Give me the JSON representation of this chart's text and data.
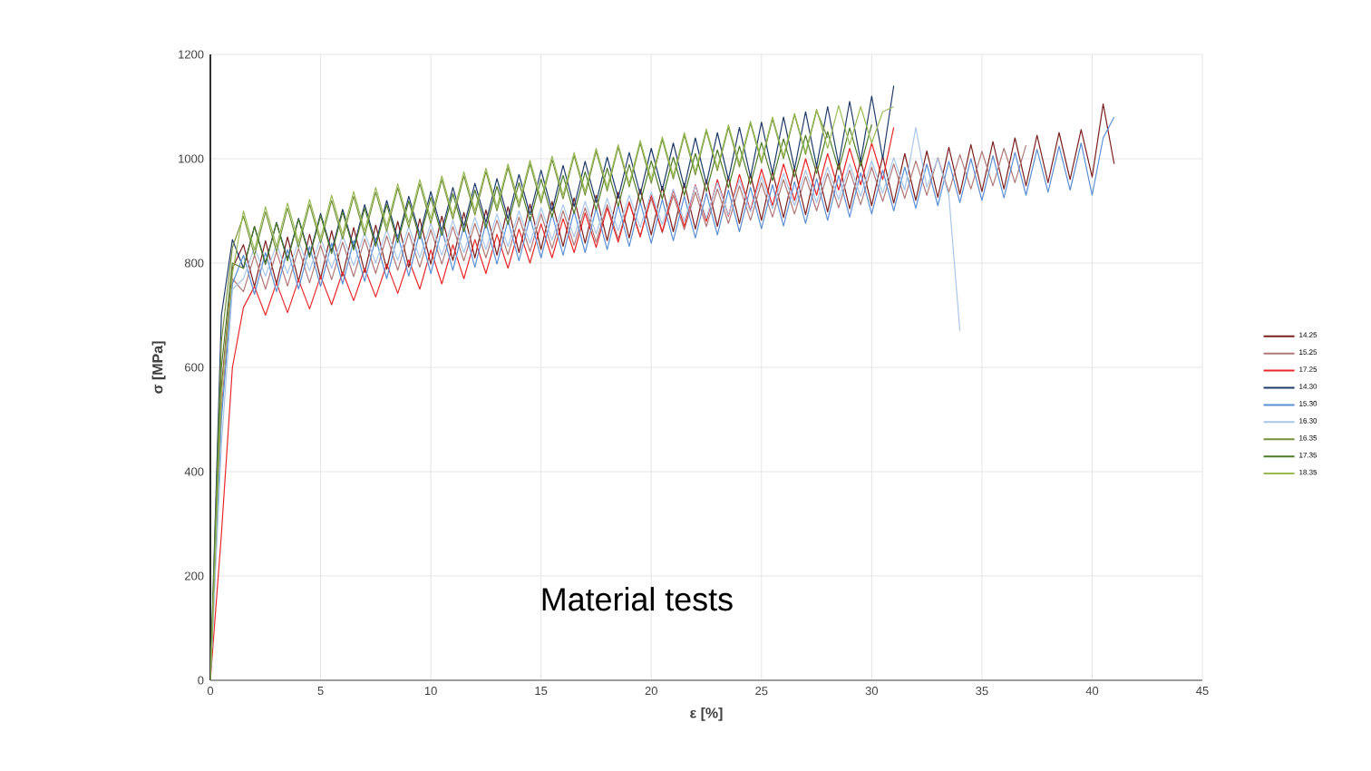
{
  "chart_data": {
    "type": "line",
    "xlabel": "ε [%]",
    "ylabel": "σ [MPa]",
    "annotations": [
      "Material tests"
    ],
    "xlim": [
      0,
      45
    ],
    "ylim": [
      0,
      1200
    ],
    "xticks": [
      0,
      5,
      10,
      15,
      20,
      25,
      30,
      35,
      40,
      45
    ],
    "yticks": [
      0,
      200,
      400,
      600,
      800,
      1000,
      1200
    ],
    "grid": true,
    "legend": "right",
    "marker": "none",
    "line_style": "solid",
    "x": [
      0,
      0.5,
      1,
      1.5,
      2,
      2.5,
      3,
      3.5,
      4,
      4.5,
      5,
      5.5,
      6,
      6.5,
      7,
      7.5,
      8,
      8.5,
      9,
      9.5,
      10,
      10.5,
      11,
      11.5,
      12,
      12.5,
      13,
      13.5,
      14,
      14.5,
      15,
      15.5,
      16,
      16.5,
      17,
      17.5,
      18,
      18.5,
      19,
      19.5,
      20,
      20.5,
      21,
      21.5,
      22,
      22.5,
      23,
      23.5,
      24,
      24.5,
      25,
      25.5,
      26,
      26.5,
      27,
      27.5,
      28,
      28.5,
      29,
      29.5,
      30,
      30.5,
      31,
      31.5,
      32,
      32.5,
      33,
      33.5,
      34,
      34.5,
      35,
      35.5,
      36,
      36.5,
      37,
      37.5,
      38,
      38.5,
      39,
      39.5,
      40,
      40.5,
      41
    ],
    "series": [
      {
        "name": "14.25",
        "color": "#7b1f1f",
        "values": [
          0,
          560,
          790,
          835,
          755,
          843,
          760,
          850,
          765,
          855,
          770,
          862,
          775,
          868,
          782,
          873,
          788,
          880,
          792,
          885,
          798,
          890,
          805,
          897,
          810,
          902,
          815,
          908,
          820,
          913,
          826,
          918,
          832,
          925,
          838,
          930,
          843,
          936,
          848,
          942,
          854,
          947,
          860,
          953,
          865,
          960,
          870,
          965,
          876,
          970,
          882,
          976,
          887,
          982,
          893,
          987,
          898,
          993,
          904,
          998,
          910,
          1005,
          915,
          1010,
          920,
          1015,
          926,
          1022,
          932,
          1027,
          937,
          1033,
          942,
          1040,
          948,
          1045,
          954,
          1050,
          960,
          1056,
          965,
          1105,
          990
        ]
      },
      {
        "name": "15.25",
        "color": "#b07878",
        "values": [
          0,
          520,
          770,
          745,
          815,
          750,
          822,
          756,
          828,
          762,
          834,
          768,
          840,
          774,
          846,
          780,
          852,
          786,
          858,
          792,
          864,
          798,
          870,
          804,
          876,
          810,
          882,
          816,
          888,
          822,
          894,
          828,
          900,
          834,
          906,
          840,
          912,
          846,
          918,
          852,
          924,
          858,
          930,
          864,
          936,
          870,
          942,
          876,
          948,
          882,
          954,
          888,
          960,
          894,
          966,
          900,
          972,
          906,
          978,
          912,
          984,
          918,
          990,
          924,
          996,
          930,
          1002,
          936,
          1008,
          942,
          1014,
          948,
          1020,
          954,
          1026,
          null,
          null,
          null,
          null,
          null,
          null,
          null,
          null
        ]
      },
      {
        "name": "17.25",
        "color": "#e8282a",
        "values": [
          0,
          280,
          600,
          715,
          755,
          700,
          762,
          705,
          768,
          712,
          775,
          720,
          783,
          728,
          790,
          735,
          798,
          742,
          806,
          750,
          825,
          760,
          835,
          770,
          845,
          780,
          855,
          790,
          865,
          800,
          875,
          810,
          885,
          820,
          896,
          830,
          906,
          840,
          916,
          850,
          930,
          860,
          940,
          870,
          950,
          880,
          960,
          890,
          970,
          900,
          980,
          910,
          990,
          920,
          1000,
          930,
          1010,
          940,
          1020,
          950,
          1030,
          960,
          1060,
          null,
          null,
          null,
          null,
          null,
          null,
          null,
          null,
          null,
          null,
          null,
          null,
          null,
          null,
          null,
          null,
          null,
          null,
          null,
          null
        ]
      },
      {
        "name": "14.30",
        "color": "#1f3a68",
        "values": [
          0,
          700,
          845,
          790,
          870,
          800,
          878,
          808,
          886,
          815,
          895,
          823,
          903,
          830,
          912,
          838,
          920,
          846,
          928,
          854,
          937,
          862,
          945,
          870,
          953,
          878,
          962,
          885,
          970,
          893,
          978,
          900,
          987,
          908,
          995,
          916,
          1003,
          924,
          1012,
          932,
          1020,
          940,
          1030,
          945,
          1040,
          952,
          1050,
          960,
          1060,
          965,
          1070,
          972,
          1080,
          980,
          1090,
          985,
          1100,
          990,
          1110,
          995,
          1120,
          1000,
          1140,
          null,
          null,
          null,
          null,
          null,
          null,
          null,
          null,
          null,
          null,
          null,
          null,
          null,
          null,
          null,
          null,
          null,
          null,
          null,
          null
        ]
      },
      {
        "name": "15.30",
        "color": "#5b8fd4",
        "values": [
          0,
          500,
          760,
          815,
          740,
          820,
          745,
          826,
          750,
          832,
          755,
          838,
          760,
          843,
          765,
          848,
          770,
          854,
          775,
          860,
          780,
          865,
          786,
          871,
          792,
          877,
          798,
          882,
          804,
          888,
          810,
          894,
          815,
          900,
          820,
          905,
          826,
          911,
          832,
          917,
          838,
          922,
          843,
          928,
          848,
          934,
          854,
          940,
          860,
          945,
          866,
          950,
          871,
          956,
          876,
          962,
          882,
          968,
          888,
          973,
          894,
          978,
          900,
          984,
          905,
          990,
          910,
          995,
          916,
          1000,
          920,
          1006,
          925,
          1012,
          930,
          1018,
          936,
          1024,
          940,
          1030,
          930,
          1040,
          1080
        ]
      },
      {
        "name": "16.30",
        "color": "#a9c6e8",
        "values": [
          0,
          450,
          750,
          770,
          830,
          775,
          836,
          780,
          842,
          785,
          848,
          790,
          853,
          795,
          858,
          800,
          864,
          805,
          870,
          810,
          876,
          815,
          882,
          820,
          888,
          826,
          894,
          832,
          900,
          838,
          906,
          844,
          912,
          850,
          918,
          856,
          924,
          862,
          930,
          868,
          936,
          874,
          942,
          880,
          948,
          886,
          954,
          892,
          960,
          898,
          966,
          904,
          972,
          910,
          978,
          916,
          984,
          922,
          990,
          928,
          996,
          934,
          1002,
          940,
          1060,
          945,
          1000,
          930,
          670,
          null,
          null,
          null,
          null,
          null,
          null,
          null,
          null,
          null,
          null,
          null,
          null,
          null,
          null
        ]
      },
      {
        "name": "16.35",
        "color": "#76923c",
        "values": [
          0,
          650,
          830,
          890,
          815,
          898,
          822,
          905,
          830,
          913,
          838,
          920,
          846,
          928,
          853,
          936,
          861,
          944,
          868,
          952,
          876,
          960,
          884,
          967,
          892,
          975,
          900,
          983,
          907,
          990,
          915,
          998,
          923,
          1006,
          930,
          1014,
          938,
          1022,
          946,
          1030,
          953,
          1037,
          961,
          1045,
          969,
          1053,
          977,
          1060,
          984,
          1068,
          992,
          1076,
          1000,
          1084,
          1008,
          1092,
          1040,
          null,
          null,
          null,
          null,
          null,
          null,
          null,
          null,
          null,
          null,
          null,
          null,
          null,
          null,
          null,
          null,
          null,
          null,
          null,
          null,
          null,
          null,
          null,
          null,
          null,
          null
        ]
      },
      {
        "name": "17.35",
        "color": "#4f7b28",
        "values": [
          0,
          600,
          800,
          790,
          870,
          797,
          877,
          804,
          884,
          811,
          891,
          818,
          898,
          825,
          905,
          832,
          912,
          839,
          919,
          846,
          926,
          853,
          933,
          860,
          940,
          867,
          947,
          874,
          954,
          881,
          961,
          888,
          968,
          895,
          975,
          902,
          982,
          909,
          989,
          916,
          996,
          923,
          1003,
          930,
          1010,
          937,
          1017,
          944,
          1024,
          951,
          1031,
          958,
          1038,
          965,
          1045,
          972,
          1052,
          979,
          1059,
          986,
          1066,
          null,
          null,
          null,
          null,
          null,
          null,
          null,
          null,
          null,
          null,
          null,
          null,
          null,
          null,
          null,
          null,
          null,
          null,
          null,
          null,
          null,
          null
        ]
      },
      {
        "name": "18.35",
        "color": "#9bbb59",
        "values": [
          0,
          550,
          780,
          900,
          825,
          908,
          832,
          915,
          840,
          922,
          847,
          930,
          855,
          937,
          862,
          945,
          870,
          952,
          877,
          960,
          885,
          967,
          892,
          975,
          900,
          982,
          907,
          990,
          915,
          997,
          922,
          1005,
          930,
          1012,
          937,
          1020,
          945,
          1027,
          952,
          1035,
          960,
          1042,
          967,
          1050,
          975,
          1057,
          982,
          1065,
          990,
          1072,
          997,
          1080,
          1005,
          1087,
          1012,
          1095,
          1020,
          1102,
          1027,
          1100,
          1030,
          1090,
          1100,
          null,
          null,
          null,
          null,
          null,
          null,
          null,
          null,
          null,
          null,
          null,
          null,
          null,
          null,
          null,
          null,
          null,
          null,
          null,
          null
        ]
      }
    ]
  }
}
